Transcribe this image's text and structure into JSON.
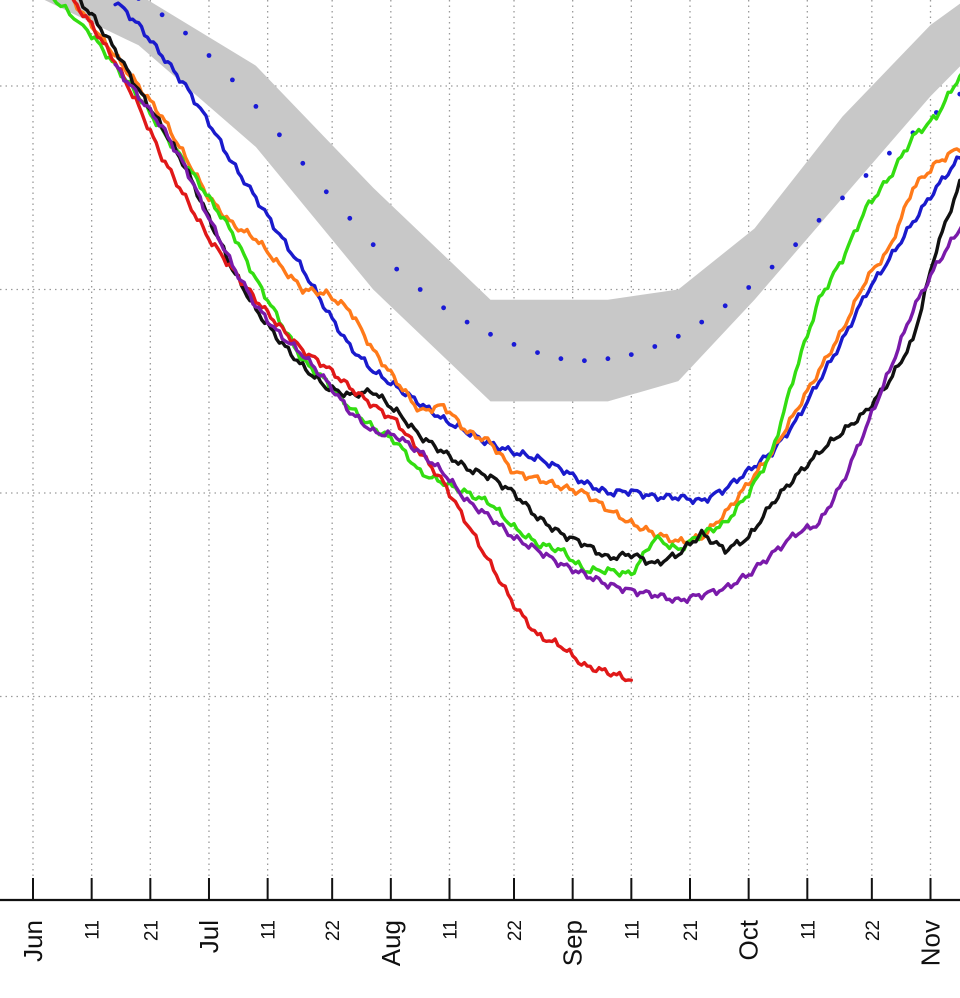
{
  "chart_data": {
    "type": "line",
    "title": "",
    "xlabel": "",
    "ylabel": "",
    "x_axis": {
      "unit": "day of year (1 Jun = 152)",
      "range": [
        152,
        317
      ],
      "ticks": [
        {
          "day": 152,
          "label": "Jun",
          "major": true
        },
        {
          "day": 162,
          "label": "11",
          "major": false
        },
        {
          "day": 172,
          "label": "21",
          "major": false
        },
        {
          "day": 182,
          "label": "Jul",
          "major": true
        },
        {
          "day": 192,
          "label": "11",
          "major": false
        },
        {
          "day": 203,
          "label": "22",
          "major": false
        },
        {
          "day": 213,
          "label": "Aug",
          "major": true
        },
        {
          "day": 223,
          "label": "11",
          "major": false
        },
        {
          "day": 234,
          "label": "22",
          "major": false
        },
        {
          "day": 244,
          "label": "Sep",
          "major": true
        },
        {
          "day": 254,
          "label": "11",
          "major": false
        },
        {
          "day": 264,
          "label": "21",
          "major": false
        },
        {
          "day": 274,
          "label": "Oct",
          "major": true
        },
        {
          "day": 284,
          "label": "11",
          "major": false
        },
        {
          "day": 295,
          "label": "22",
          "major": false
        },
        {
          "day": 305,
          "label": "Nov",
          "major": true
        }
      ]
    },
    "y_axis": {
      "range": [
        0,
        4.4
      ],
      "gridlines": [
        1,
        2,
        3,
        4
      ],
      "tick_labels_visible": false
    },
    "grid": true,
    "legend": "none",
    "band": {
      "color": "#c8c8c8",
      "x": [
        152,
        170,
        190,
        210,
        230,
        250,
        262,
        275,
        290,
        305,
        317
      ],
      "upper": [
        4.6,
        4.45,
        4.1,
        3.5,
        2.95,
        2.95,
        3.0,
        3.3,
        3.85,
        4.3,
        4.55
      ],
      "lower": [
        4.45,
        4.2,
        3.7,
        3.0,
        2.45,
        2.45,
        2.55,
        2.95,
        3.45,
        3.95,
        4.3
      ]
    },
    "median": {
      "color": "#1a1ad6",
      "x": [
        166,
        170,
        174,
        178,
        182,
        186,
        190,
        194,
        198,
        202,
        206,
        210,
        214,
        218,
        222,
        226,
        230,
        234,
        238,
        242,
        246,
        250,
        254,
        258,
        262,
        266,
        270,
        274,
        278,
        282,
        286,
        290,
        294,
        298,
        302,
        306,
        310,
        314
      ],
      "y": [
        4.48,
        4.43,
        4.35,
        4.26,
        4.15,
        4.03,
        3.9,
        3.76,
        3.62,
        3.48,
        3.35,
        3.22,
        3.1,
        3.0,
        2.91,
        2.84,
        2.78,
        2.73,
        2.69,
        2.66,
        2.65,
        2.66,
        2.68,
        2.72,
        2.77,
        2.84,
        2.92,
        3.01,
        3.11,
        3.22,
        3.34,
        3.45,
        3.56,
        3.67,
        3.77,
        3.87,
        3.96,
        4.06
      ]
    },
    "series": [
      {
        "color": "#1a1acc",
        "x": [
          166,
          170,
          174,
          178,
          182,
          186,
          190,
          194,
          198,
          202,
          206,
          210,
          214,
          218,
          222,
          226,
          230,
          234,
          238,
          242,
          246,
          250,
          254,
          258,
          262,
          266,
          270,
          274,
          278,
          282,
          286,
          290,
          294,
          298,
          302,
          306,
          310,
          317
        ],
        "y": [
          4.42,
          4.3,
          4.15,
          4.0,
          3.82,
          3.62,
          3.45,
          3.27,
          3.1,
          2.9,
          2.72,
          2.6,
          2.52,
          2.44,
          2.36,
          2.3,
          2.24,
          2.2,
          2.17,
          2.12,
          2.05,
          2.0,
          2.01,
          1.98,
          1.98,
          1.96,
          2.02,
          2.11,
          2.2,
          2.35,
          2.55,
          2.75,
          2.98,
          3.15,
          3.33,
          3.5,
          3.65,
          3.8
        ]
      },
      {
        "color": "#ff7a1a",
        "x": [
          158,
          162,
          166,
          170,
          174,
          178,
          182,
          186,
          190,
          194,
          198,
          202,
          206,
          210,
          214,
          218,
          222,
          226,
          230,
          234,
          238,
          242,
          246,
          250,
          254,
          258,
          262,
          266,
          270,
          274,
          278,
          282,
          286,
          290,
          294,
          298,
          302,
          306,
          310,
          317
        ],
        "y": [
          4.45,
          4.3,
          4.15,
          4.0,
          3.85,
          3.65,
          3.45,
          3.32,
          3.25,
          3.12,
          3.0,
          2.98,
          2.9,
          2.7,
          2.55,
          2.4,
          2.43,
          2.3,
          2.25,
          2.1,
          2.07,
          2.03,
          2.0,
          1.92,
          1.85,
          1.8,
          1.76,
          1.78,
          1.9,
          2.05,
          2.2,
          2.4,
          2.6,
          2.8,
          3.05,
          3.2,
          3.5,
          3.62,
          3.7,
          3.75
        ]
      },
      {
        "color": "#33dd11",
        "x": [
          152,
          156,
          162,
          166,
          170,
          174,
          178,
          182,
          186,
          190,
          194,
          198,
          202,
          206,
          210,
          214,
          218,
          222,
          226,
          230,
          234,
          238,
          242,
          246,
          250,
          254,
          258,
          262,
          266,
          270,
          274,
          278,
          282,
          286,
          290,
          294,
          298,
          302,
          306,
          310,
          317
        ],
        "y": [
          4.48,
          4.42,
          4.25,
          4.1,
          3.95,
          3.78,
          3.62,
          3.45,
          3.28,
          3.05,
          2.85,
          2.65,
          2.55,
          2.42,
          2.32,
          2.25,
          2.1,
          2.05,
          2.0,
          1.95,
          1.83,
          1.75,
          1.72,
          1.62,
          1.62,
          1.6,
          1.78,
          1.72,
          1.8,
          1.85,
          2.0,
          2.2,
          2.6,
          2.95,
          3.15,
          3.4,
          3.55,
          3.75,
          3.85,
          4.05,
          4.28
        ]
      },
      {
        "color": "#111111",
        "x": [
          159,
          162,
          166,
          170,
          174,
          178,
          182,
          186,
          190,
          194,
          198,
          202,
          206,
          210,
          214,
          218,
          222,
          226,
          230,
          234,
          238,
          242,
          246,
          250,
          254,
          258,
          262,
          266,
          270,
          274,
          278,
          282,
          286,
          290,
          294,
          298,
          302,
          306,
          310,
          317
        ],
        "y": [
          4.45,
          4.35,
          4.18,
          3.98,
          3.8,
          3.6,
          3.35,
          3.1,
          2.9,
          2.75,
          2.62,
          2.52,
          2.48,
          2.5,
          2.4,
          2.28,
          2.2,
          2.12,
          2.08,
          2.0,
          1.88,
          1.8,
          1.75,
          1.68,
          1.7,
          1.65,
          1.7,
          1.8,
          1.72,
          1.78,
          1.95,
          2.08,
          2.2,
          2.3,
          2.4,
          2.55,
          2.75,
          3.2,
          3.52,
          3.7
        ]
      },
      {
        "color": "#e01818",
        "x": [
          158,
          162,
          166,
          170,
          174,
          178,
          182,
          186,
          190,
          194,
          198,
          202,
          206,
          210,
          214,
          218,
          222,
          226,
          230,
          234,
          238,
          242,
          246,
          250,
          254
        ],
        "y": [
          4.45,
          4.3,
          4.12,
          3.9,
          3.65,
          3.45,
          3.25,
          3.1,
          2.95,
          2.82,
          2.7,
          2.62,
          2.52,
          2.43,
          2.35,
          2.2,
          2.05,
          1.85,
          1.65,
          1.45,
          1.3,
          1.25,
          1.15,
          1.12,
          1.08
        ]
      },
      {
        "color": "#7a1aaa",
        "x": [
          166,
          170,
          174,
          178,
          182,
          186,
          190,
          194,
          198,
          202,
          206,
          210,
          214,
          218,
          222,
          226,
          230,
          234,
          238,
          242,
          246,
          250,
          254,
          258,
          262,
          266,
          270,
          274,
          278,
          282,
          286,
          290,
          294,
          298,
          302,
          306,
          310,
          317
        ],
        "y": [
          4.1,
          3.95,
          3.8,
          3.6,
          3.35,
          3.12,
          2.92,
          2.78,
          2.68,
          2.55,
          2.4,
          2.3,
          2.28,
          2.2,
          2.1,
          1.96,
          1.88,
          1.78,
          1.72,
          1.65,
          1.6,
          1.55,
          1.52,
          1.5,
          1.47,
          1.5,
          1.53,
          1.6,
          1.7,
          1.8,
          1.85,
          2.05,
          2.32,
          2.6,
          2.9,
          3.12,
          3.3,
          3.5
        ]
      }
    ]
  }
}
